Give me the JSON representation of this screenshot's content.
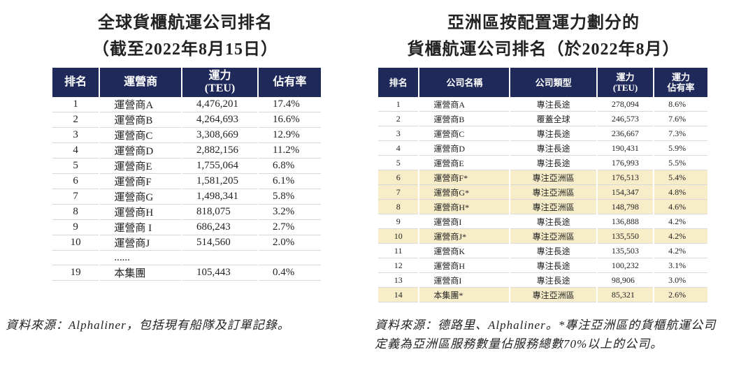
{
  "left": {
    "title_lines": [
      "全球貨櫃航運公司排名",
      "（截至2022年8月15日）"
    ],
    "header": [
      [
        "排名"
      ],
      [
        "運營商"
      ],
      [
        "運力",
        "(TEU)"
      ],
      [
        "佔有率"
      ]
    ],
    "rows": [
      [
        "1",
        "運營商A",
        "4,476,201",
        "17.4%"
      ],
      [
        "2",
        "運營商B",
        "4,264,693",
        "16.6%"
      ],
      [
        "3",
        "運營商C",
        "3,308,669",
        "12.9%"
      ],
      [
        "4",
        "運營商D",
        "2,882,156",
        "11.2%"
      ],
      [
        "5",
        "運營商E",
        "1,755,064",
        "6.8%"
      ],
      [
        "6",
        "運營商F",
        "1,581,205",
        "6.1%"
      ],
      [
        "7",
        "運營商G",
        "1,498,341",
        "5.8%"
      ],
      [
        "8",
        "運營商H",
        "818,075",
        "3.2%"
      ],
      [
        "9",
        "運營商 I",
        "686,243",
        "2.7%"
      ],
      [
        "10",
        "運營商J",
        "514,560",
        "2.0%"
      ]
    ],
    "ellipsis": "......",
    "last_row": [
      "19",
      "本集團",
      "105,443",
      "0.4%"
    ],
    "source": "資料來源：Alphaliner，包括現有船隊及訂單記錄。"
  },
  "right": {
    "title_lines": [
      "亞洲區按配置運力劃分的",
      "貨櫃航運公司排名（於2022年8月）"
    ],
    "header": [
      [
        "排名"
      ],
      [
        "公司名稱"
      ],
      [
        "公司類型"
      ],
      [
        "運力",
        "(TEU)"
      ],
      [
        "運力",
        "佔有率"
      ]
    ],
    "rows": [
      {
        "cells": [
          "1",
          "運營商A",
          "專注長途",
          "278,094",
          "8.6%"
        ],
        "highlight": false
      },
      {
        "cells": [
          "2",
          "運營商B",
          "覆蓋全球",
          "246,573",
          "7.6%"
        ],
        "highlight": false
      },
      {
        "cells": [
          "3",
          "運營商C",
          "專注長途",
          "236,667",
          "7.3%"
        ],
        "highlight": false
      },
      {
        "cells": [
          "4",
          "運營商D",
          "專注長途",
          "190,431",
          "5.9%"
        ],
        "highlight": false
      },
      {
        "cells": [
          "5",
          "運營商E",
          "專注長途",
          "176,993",
          "5.5%"
        ],
        "highlight": false
      },
      {
        "cells": [
          "6",
          "運營商F*",
          "專注亞洲區",
          "176,513",
          "5.4%"
        ],
        "highlight": true
      },
      {
        "cells": [
          "7",
          "運營商G*",
          "專注亞洲區",
          "154,347",
          "4.8%"
        ],
        "highlight": true
      },
      {
        "cells": [
          "8",
          "運營商H*",
          "專注亞洲區",
          "148,798",
          "4.6%"
        ],
        "highlight": true
      },
      {
        "cells": [
          "9",
          "運營商I",
          "專注長途",
          "136,888",
          "4.2%"
        ],
        "highlight": false
      },
      {
        "cells": [
          "10",
          "運營商J*",
          "專注亞洲區",
          "135,550",
          "4.2%"
        ],
        "highlight": true
      },
      {
        "cells": [
          "11",
          "運營商K",
          "專注長途",
          "135,503",
          "4.2%"
        ],
        "highlight": false
      },
      {
        "cells": [
          "12",
          "運營商H",
          "專注長途",
          "100,232",
          "3.1%"
        ],
        "highlight": false
      },
      {
        "cells": [
          "13",
          "運營商I",
          "專注長途",
          "98,906",
          "3.0%"
        ],
        "highlight": false
      },
      {
        "cells": [
          "14",
          "本集團*",
          "專注亞洲區",
          "85,321",
          "2.6%"
        ],
        "highlight": true
      }
    ],
    "source": "資料來源：德路里、Alphaliner。*專注亞洲區的貨櫃航運公司定義為亞洲區服務數量佔服務總數70%以上的公司。"
  }
}
